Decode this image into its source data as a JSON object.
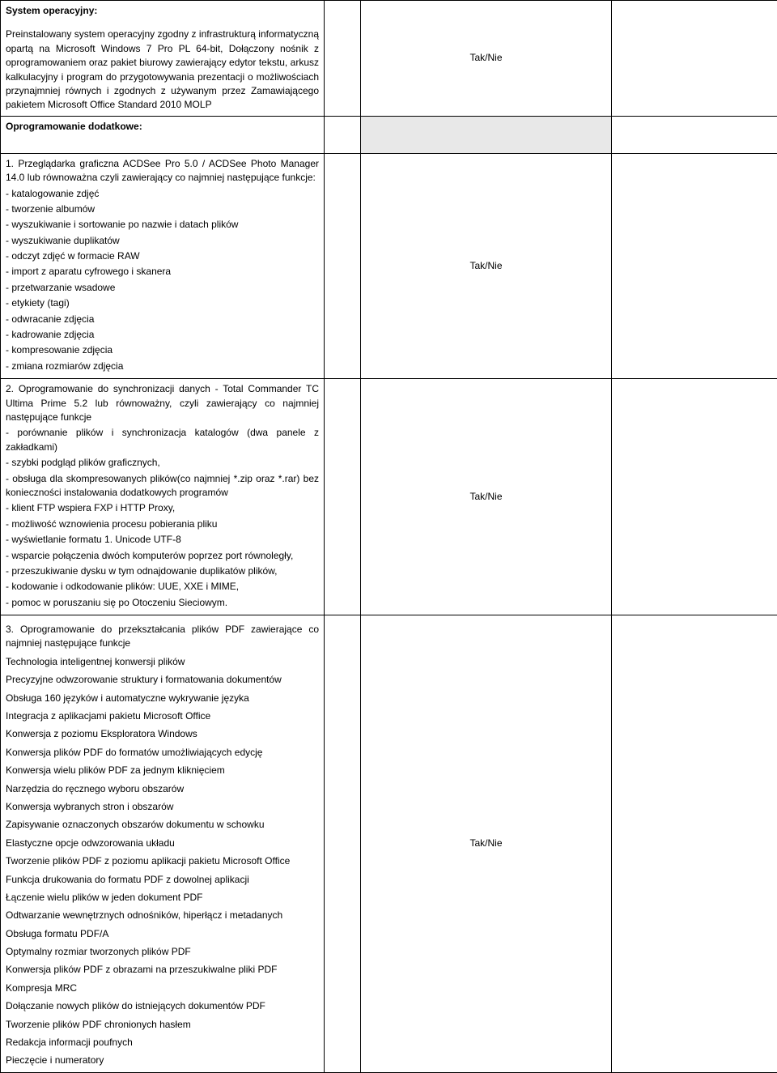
{
  "yesno": "Tak/Nie",
  "row1": {
    "title": "System operacyjny:",
    "body": "Preinstalowany system operacyjny zgodny z infrastrukturą informatyczną opartą na Microsoft Windows 7 Pro PL 64-bit, Dołączony nośnik z oprogramowaniem oraz pakiet biurowy zawierający edytor tekstu, arkusz kalkulacyjny i program do przygotowywania prezentacji o możliwościach przynajmniej równych i zgodnych z używanym przez Zamawiającego pakietem Microsoft Office Standard 2010 MOLP"
  },
  "row2": {
    "title": "Oprogramowanie dodatkowe:"
  },
  "row3": {
    "lead": "1. Przeglądarka graficzna ACDSee Pro 5.0 / ACDSee Photo Manager 14.0 lub równoważna czyli zawierający co najmniej następujące funkcje:",
    "items": [
      "- katalogowanie zdjęć",
      "- tworzenie albumów",
      "- wyszukiwanie i sortowanie po nazwie i datach plików",
      "- wyszukiwanie duplikatów",
      "- odczyt zdjęć w formacie RAW",
      "- import z aparatu cyfrowego i skanera",
      "- przetwarzanie wsadowe",
      "- etykiety (tagi)",
      "- odwracanie zdjęcia",
      "- kadrowanie zdjęcia",
      "- kompresowanie zdjęcia",
      "- zmiana rozmiarów zdjęcia"
    ]
  },
  "row4": {
    "lead": "2. Oprogramowanie do synchronizacji danych - Total Commander TC Ultima Prime 5.2 lub równoważny, czyli zawierający co najmniej następujące funkcje",
    "items": [
      "- porównanie plików i synchronizacja katalogów (dwa panele z zakładkami)",
      "- szybki podgląd plików graficznych,",
      "- obsługa dla skompresowanych plików(co najmniej *.zip oraz *.rar) bez konieczności instalowania dodatkowych programów",
      "- klient FTP wspiera FXP i HTTP Proxy,",
      "- możliwość wznowienia procesu pobierania pliku",
      "- wyświetlanie formatu 1. Unicode UTF-8",
      "- wsparcie połączenia dwóch komputerów poprzez port równoległy,",
      "- przeszukiwanie dysku w tym odnajdowanie duplikatów plików,",
      "- kodowanie i odkodowanie plików: UUE, XXE i MIME,",
      "- pomoc w poruszaniu się po Otoczeniu Sieciowym."
    ]
  },
  "row5": {
    "lead": "3. Oprogramowanie do przekształcania plików PDF zawierające co najmniej następujące funkcje",
    "items": [
      "Technologia inteligentnej konwersji plików",
      "Precyzyjne odwzorowanie struktury i formatowania dokumentów",
      "Obsługa 160 języków i automatyczne wykrywanie języka",
      "Integracja z aplikacjami pakietu Microsoft Office",
      "Konwersja z poziomu Eksploratora Windows",
      "Konwersja plików PDF do formatów umożliwiających edycję",
      "Konwersja wielu plików PDF za jednym kliknięciem",
      "Narzędzia do ręcznego wyboru obszarów",
      "Konwersja wybranych stron i obszarów",
      "Zapisywanie oznaczonych obszarów dokumentu w schowku",
      "Elastyczne opcje odwzorowania układu",
      "Tworzenie plików PDF z poziomu aplikacji pakietu Microsoft Office",
      "Funkcja drukowania do formatu PDF z dowolnej aplikacji",
      "Łączenie wielu plików w jeden dokument PDF",
      "Odtwarzanie wewnętrznych odnośników, hiperłącz i metadanych",
      "Obsługa formatu PDF/A",
      "Optymalny rozmiar tworzonych plików PDF",
      "Konwersja plików PDF z obrazami na przeszukiwalne pliki PDF",
      "Kompresja MRC",
      "Dołączanie nowych plików do istniejących dokumentów PDF",
      "Tworzenie plików PDF chronionych hasłem",
      "Redakcja informacji poufnych",
      "Pieczęcie i numeratory"
    ]
  }
}
